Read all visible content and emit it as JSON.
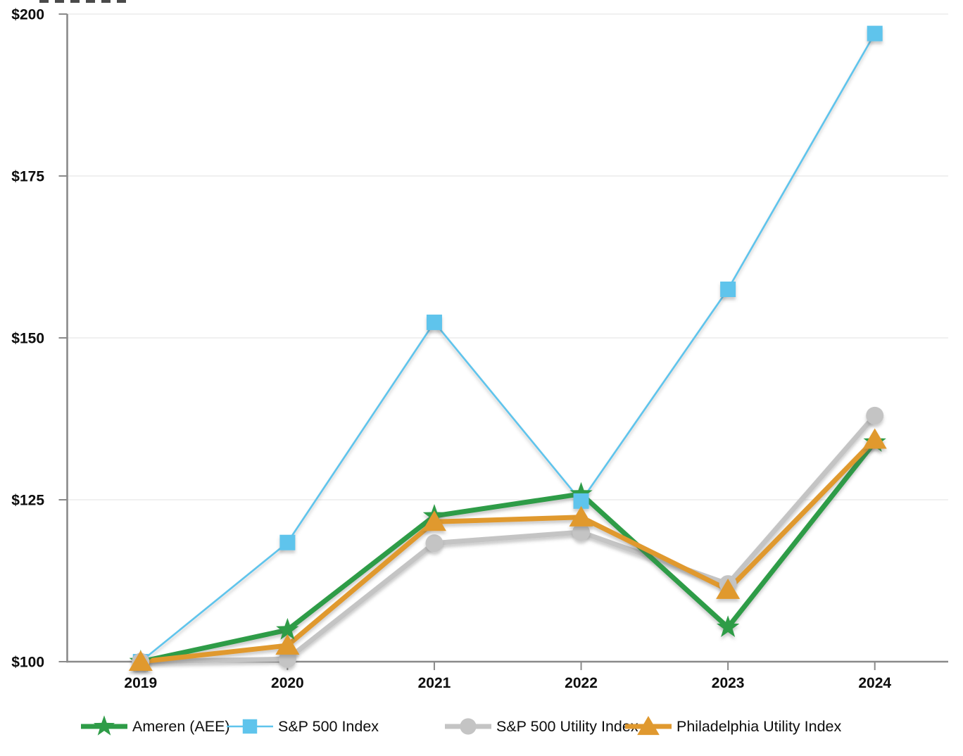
{
  "chart_data": {
    "type": "line",
    "title": "",
    "categories": [
      "2019",
      "2020",
      "2021",
      "2022",
      "2023",
      "2024"
    ],
    "series": [
      {
        "name": "Ameren (AEE)",
        "marker": "star",
        "color": "#2E9C47",
        "line_width": 7,
        "values": [
          100,
          104.9,
          122.5,
          125.9,
          105.3,
          133.9
        ]
      },
      {
        "name": "S&P 500 Index",
        "marker": "square",
        "color": "#5FC4EC",
        "line_width": 2.6,
        "values": [
          100,
          118.4,
          152.4,
          124.8,
          157.5,
          197.0
        ]
      },
      {
        "name": "S&P 500 Utility Index",
        "marker": "circle",
        "color": "#C4C4C4",
        "line_width": 7,
        "values": [
          100,
          100.4,
          118.3,
          120.0,
          112.0,
          138.0
        ]
      },
      {
        "name": "Philadelphia Utility Index",
        "marker": "triangle",
        "color": "#E0992F",
        "line_width": 7,
        "values": [
          100,
          102.5,
          121.6,
          122.3,
          111.1,
          134.3
        ]
      }
    ],
    "y_axis": {
      "tick_labels": [
        "$100",
        "$125",
        "$150",
        "$175",
        "$200"
      ],
      "tick_values": [
        100,
        125,
        150,
        175,
        200
      ],
      "min": 100,
      "max": 200,
      "grid": true,
      "currency_prefix": "$"
    },
    "x_axis": {
      "tick_labels": [
        "2019",
        "2020",
        "2021",
        "2022",
        "2023",
        "2024"
      ]
    },
    "legend_position": "bottom",
    "colors": {
      "axis": "#8A8A8A",
      "grid": "#ECECEC",
      "tick_label": "#0D0D0D",
      "legend_text": "#0D0D0D",
      "background": "#FFFFFF"
    }
  }
}
